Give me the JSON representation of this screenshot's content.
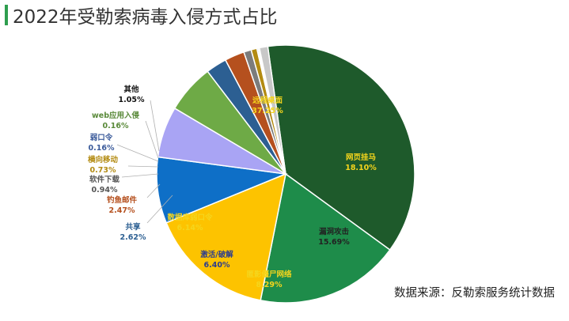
{
  "title": "2022年受勒索病毒入侵方式占比",
  "source": "数据来源：反勒索服务统计数据",
  "chart_data": {
    "type": "pie",
    "title": "2022年受勒索病毒入侵方式占比",
    "slices": [
      {
        "label": "远程桌面",
        "value": 37.25,
        "display": "37.25%",
        "color": "#1e5a2b",
        "text_color": "#f5d51c"
      },
      {
        "label": "网页挂马",
        "value": 18.1,
        "display": "18.10%",
        "color": "#1e8c4a",
        "text_color": "#f5d51c"
      },
      {
        "label": "漏洞攻击",
        "value": 15.69,
        "display": "15.69%",
        "color": "#fdc300",
        "text_color": "#222222"
      },
      {
        "label": "匿影僵尸网络",
        "value": 8.29,
        "display": "8.29%",
        "color": "#0e6fc7",
        "text_color": "#f5d51c"
      },
      {
        "label": "激活/破解",
        "value": 6.4,
        "display": "6.40%",
        "color": "#a9a4f4",
        "text_color": "#2b3c8f"
      },
      {
        "label": "数据库弱口令",
        "value": 6.14,
        "display": "6.14%",
        "color": "#6eaa46",
        "text_color": "#f5d51c"
      },
      {
        "label": "共享",
        "value": 2.62,
        "display": "2.62%",
        "color": "#2c5f92",
        "text_color": "#2c5f92"
      },
      {
        "label": "钓鱼邮件",
        "value": 2.47,
        "display": "2.47%",
        "color": "#b5501e",
        "text_color": "#b5501e"
      },
      {
        "label": "软件下载",
        "value": 0.94,
        "display": "0.94%",
        "color": "#7c7c7c",
        "text_color": "#555555"
      },
      {
        "label": "横向移动",
        "value": 0.73,
        "display": "0.73%",
        "color": "#b38b12",
        "text_color": "#b38b12"
      },
      {
        "label": "弱口令",
        "value": 0.16,
        "display": "0.16%",
        "color": "#3a5a9a",
        "text_color": "#3a5a9a"
      },
      {
        "label": "web应用入侵",
        "value": 0.16,
        "display": "0.16%",
        "color": "#5a8a3a",
        "text_color": "#5a8a3a"
      },
      {
        "label": "其他",
        "value": 1.05,
        "display": "1.05%",
        "color": "#c8c8c8",
        "text_color": "#111111"
      }
    ]
  }
}
